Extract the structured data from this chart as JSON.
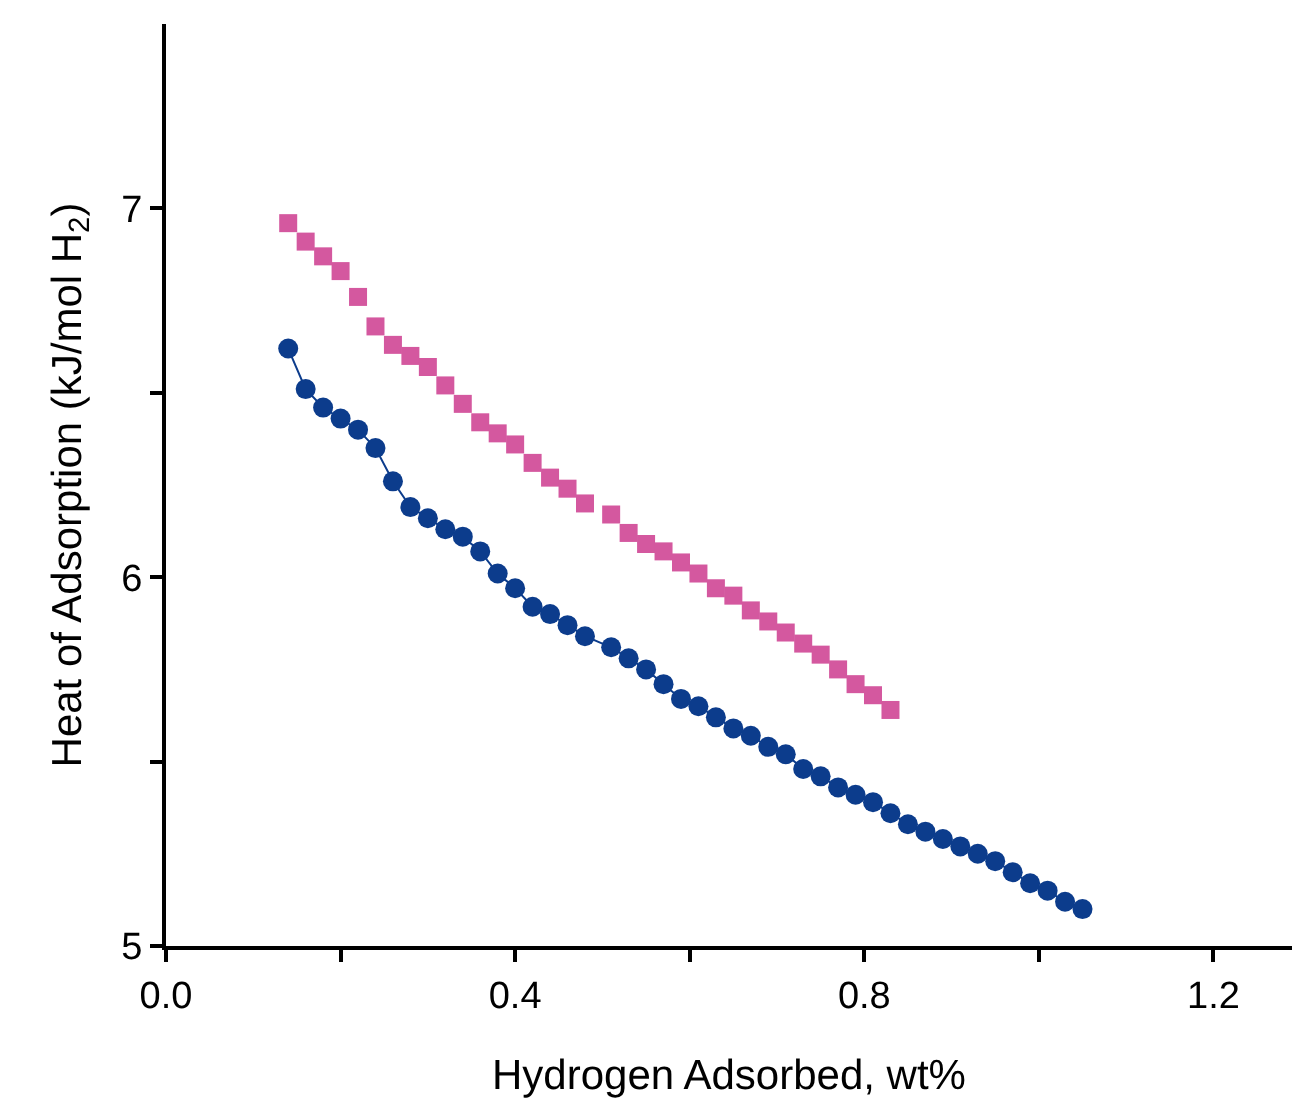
{
  "chart_data": {
    "type": "line",
    "xlabel": "Hydrogen Adsorbed, wt%",
    "ylabel": "Heat of Adsorption (kJ/mol H$_{2}$)",
    "xlim": [
      0,
      1.29
    ],
    "ylim": [
      5,
      7.5
    ],
    "xticks": [
      {
        "value": 0,
        "label": "0.0"
      },
      {
        "value": 0.2,
        "label": null
      },
      {
        "value": 0.4,
        "label": "0.4"
      },
      {
        "value": 0.6,
        "label": null
      },
      {
        "value": 0.8,
        "label": "0.8"
      },
      {
        "value": 1.0,
        "label": null
      },
      {
        "value": 1.2,
        "label": "1.2"
      }
    ],
    "yticks": [
      5,
      {
        "value": 5.5,
        "label": null
      },
      6,
      {
        "value": 6.5,
        "label": null
      },
      7
    ],
    "line_style": "solid",
    "series": [
      {
        "type": "scatter",
        "color": "#d4589f",
        "marker": "square",
        "x": [
          0.14,
          0.16,
          0.18,
          0.2,
          0.22,
          0.24,
          0.26,
          0.28,
          0.3,
          0.32,
          0.34,
          0.36,
          0.38,
          0.4,
          0.42,
          0.44,
          0.46,
          0.48,
          0.51,
          0.53,
          0.55,
          0.57,
          0.59,
          0.61,
          0.63,
          0.65,
          0.67,
          0.69,
          0.71,
          0.73,
          0.75,
          0.77,
          0.79,
          0.81,
          0.83
        ],
        "values": [
          6.96,
          6.91,
          6.87,
          6.83,
          6.76,
          6.68,
          6.63,
          6.6,
          6.57,
          6.52,
          6.47,
          6.42,
          6.39,
          6.36,
          6.31,
          6.27,
          6.24,
          6.2,
          6.17,
          6.12,
          6.09,
          6.07,
          6.04,
          6.01,
          5.97,
          5.95,
          5.91,
          5.88,
          5.85,
          5.82,
          5.79,
          5.75,
          5.71,
          5.68,
          5.64
        ]
      },
      {
        "color": "#0c3c8c",
        "marker": "circle",
        "x": [
          0.14,
          0.16,
          0.18,
          0.2,
          0.22,
          0.24,
          0.26,
          0.28,
          0.3,
          0.32,
          0.34,
          0.36,
          0.38,
          0.4,
          0.42,
          0.44,
          0.46,
          0.48,
          0.51,
          0.53,
          0.55,
          0.57,
          0.59,
          0.61,
          0.63,
          0.65,
          0.67,
          0.69,
          0.71,
          0.73,
          0.75,
          0.77,
          0.79,
          0.81,
          0.83,
          0.85,
          0.87,
          0.89,
          0.91,
          0.93,
          0.95,
          0.97,
          0.99,
          1.01,
          1.03,
          1.05
        ],
        "values": [
          6.62,
          6.51,
          6.46,
          6.43,
          6.4,
          6.35,
          6.26,
          6.19,
          6.16,
          6.13,
          6.11,
          6.07,
          6.01,
          5.97,
          5.92,
          5.9,
          5.87,
          5.84,
          5.81,
          5.78,
          5.75,
          5.71,
          5.67,
          5.65,
          5.62,
          5.59,
          5.57,
          5.54,
          5.52,
          5.48,
          5.46,
          5.43,
          5.41,
          5.39,
          5.36,
          5.33,
          5.31,
          5.29,
          5.27,
          5.25,
          5.23,
          5.2,
          5.17,
          5.15,
          5.12,
          5.1
        ]
      }
    ]
  }
}
